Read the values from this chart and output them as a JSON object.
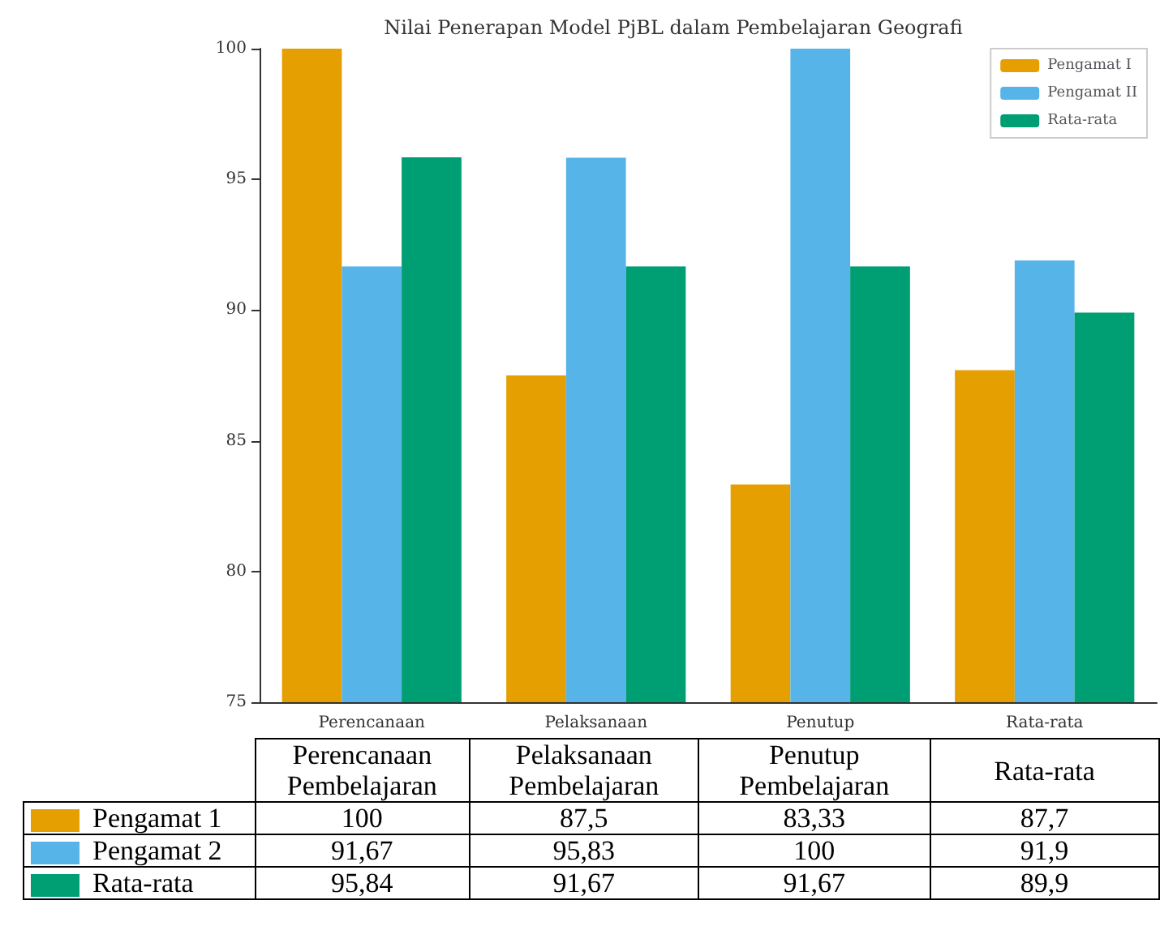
{
  "chart_data": {
    "type": "bar",
    "title": "Nilai Penerapan Model PjBL dalam Pembelajaran Geografi",
    "categories": [
      "Perencanaan",
      "Pelaksanaan",
      "Penutup",
      "Rata-rata"
    ],
    "series": [
      {
        "name": "Pengamat I",
        "color": "#e69f00",
        "values": [
          100,
          87.5,
          83.33,
          87.7
        ],
        "value_labels": [
          "100",
          "87,5",
          "83,33",
          "87,7"
        ]
      },
      {
        "name": "Pengamat II",
        "color": "#56b4e9",
        "values": [
          91.67,
          95.83,
          100,
          91.9
        ],
        "value_labels": [
          "91,67",
          "95,83",
          "100",
          "91,9"
        ]
      },
      {
        "name": "Rata-rata",
        "color": "#009e73",
        "values": [
          95.84,
          91.67,
          91.67,
          89.9
        ],
        "value_labels": [
          "95,84",
          "91,67",
          "91,67",
          "89,9"
        ]
      }
    ],
    "ylim": [
      75,
      100
    ],
    "yticks": [
      75,
      80,
      85,
      90,
      95,
      100
    ],
    "legend": "top right",
    "annotations": [
      "Perencanaan Pembelajaran",
      "Pelaksanaan Pembelajaran",
      "Penutup Pembelajaran",
      "Rata-rata",
      "Pengamat 1",
      "Pengamat 2",
      "Rata-rata"
    ]
  }
}
